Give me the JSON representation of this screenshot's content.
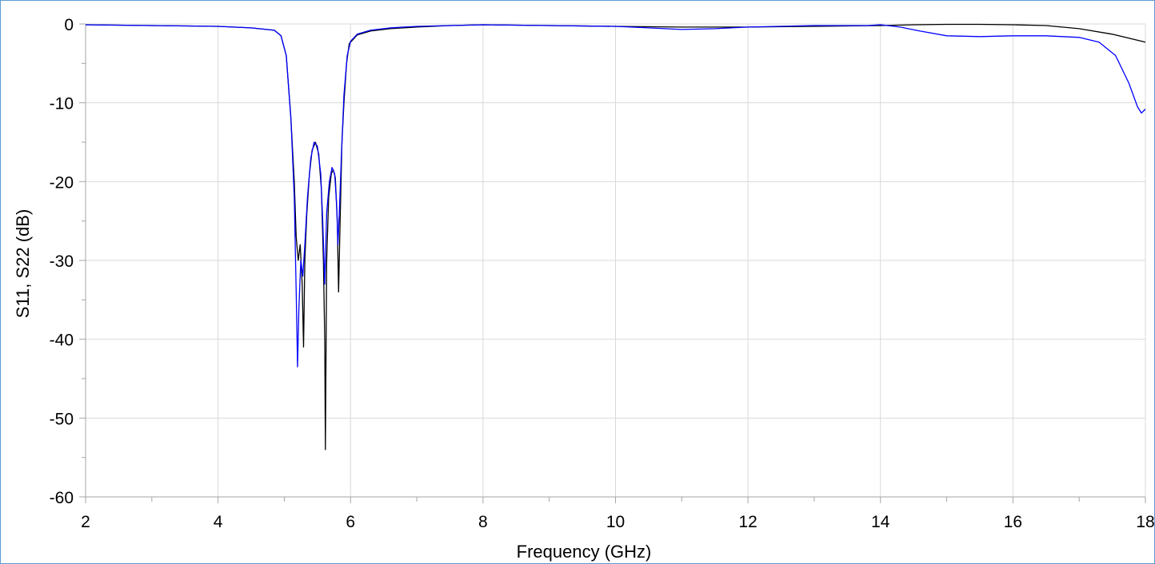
{
  "chart_data": {
    "type": "line",
    "xlabel": "Frequency (GHz)",
    "ylabel": "S11, S22 (dB)",
    "xlim": [
      2,
      18
    ],
    "ylim": [
      -60,
      0
    ],
    "x_ticks": [
      2,
      4,
      6,
      8,
      10,
      12,
      14,
      16,
      18
    ],
    "y_ticks": [
      0,
      -10,
      -20,
      -30,
      -40,
      -50,
      -60
    ],
    "x_tick_labels": [
      "2",
      "4",
      "6",
      "8",
      "10",
      "12",
      "14",
      "16",
      "18"
    ],
    "y_tick_labels": [
      "0",
      "-10",
      "-20",
      "-30",
      "-40",
      "-50",
      "-60"
    ],
    "grid": true,
    "series": [
      {
        "color": "#000000",
        "points": [
          [
            2.0,
            -0.1
          ],
          [
            3.0,
            -0.2
          ],
          [
            4.0,
            -0.3
          ],
          [
            4.5,
            -0.5
          ],
          [
            4.85,
            -0.8
          ],
          [
            4.95,
            -1.5
          ],
          [
            5.03,
            -4
          ],
          [
            5.1,
            -12
          ],
          [
            5.15,
            -20
          ],
          [
            5.18,
            -27
          ],
          [
            5.21,
            -30
          ],
          [
            5.24,
            -28
          ],
          [
            5.27,
            -33
          ],
          [
            5.29,
            -41
          ],
          [
            5.31,
            -30
          ],
          [
            5.34,
            -24
          ],
          [
            5.38,
            -19
          ],
          [
            5.42,
            -16
          ],
          [
            5.47,
            -15
          ],
          [
            5.52,
            -16.5
          ],
          [
            5.56,
            -21
          ],
          [
            5.59,
            -30
          ],
          [
            5.61,
            -40
          ],
          [
            5.62,
            -54
          ],
          [
            5.64,
            -30
          ],
          [
            5.67,
            -22
          ],
          [
            5.71,
            -19
          ],
          [
            5.74,
            -18.5
          ],
          [
            5.77,
            -19.5
          ],
          [
            5.8,
            -25
          ],
          [
            5.82,
            -34
          ],
          [
            5.84,
            -26
          ],
          [
            5.87,
            -15
          ],
          [
            5.9,
            -10
          ],
          [
            5.94,
            -5
          ],
          [
            5.98,
            -2.5
          ],
          [
            6.1,
            -1.4
          ],
          [
            6.3,
            -0.9
          ],
          [
            6.6,
            -0.6
          ],
          [
            7.0,
            -0.4
          ],
          [
            7.5,
            -0.2
          ],
          [
            8.0,
            -0.1
          ],
          [
            9.0,
            -0.2
          ],
          [
            10.0,
            -0.3
          ],
          [
            11.0,
            -0.4
          ],
          [
            12.0,
            -0.4
          ],
          [
            13.0,
            -0.3
          ],
          [
            14.0,
            -0.2
          ],
          [
            14.5,
            -0.1
          ],
          [
            15.0,
            -0.05
          ],
          [
            15.5,
            -0.05
          ],
          [
            16.0,
            -0.1
          ],
          [
            16.5,
            -0.2
          ],
          [
            17.0,
            -0.6
          ],
          [
            17.5,
            -1.3
          ],
          [
            18.0,
            -2.3
          ]
        ]
      },
      {
        "color": "#0000ff",
        "points": [
          [
            2.0,
            -0.1
          ],
          [
            3.0,
            -0.2
          ],
          [
            4.0,
            -0.3
          ],
          [
            4.5,
            -0.5
          ],
          [
            4.85,
            -0.8
          ],
          [
            4.95,
            -1.5
          ],
          [
            5.03,
            -4
          ],
          [
            5.1,
            -12
          ],
          [
            5.15,
            -22
          ],
          [
            5.18,
            -34
          ],
          [
            5.2,
            -43.5
          ],
          [
            5.22,
            -36
          ],
          [
            5.25,
            -30
          ],
          [
            5.28,
            -32
          ],
          [
            5.31,
            -28
          ],
          [
            5.35,
            -22
          ],
          [
            5.4,
            -17
          ],
          [
            5.45,
            -15
          ],
          [
            5.5,
            -15.5
          ],
          [
            5.55,
            -19
          ],
          [
            5.58,
            -25
          ],
          [
            5.61,
            -33
          ],
          [
            5.64,
            -24
          ],
          [
            5.68,
            -20
          ],
          [
            5.72,
            -18.2
          ],
          [
            5.76,
            -19
          ],
          [
            5.79,
            -23
          ],
          [
            5.81,
            -28
          ],
          [
            5.83,
            -24
          ],
          [
            5.86,
            -17
          ],
          [
            5.9,
            -9
          ],
          [
            5.95,
            -4
          ],
          [
            6.0,
            -2.2
          ],
          [
            6.1,
            -1.3
          ],
          [
            6.3,
            -0.8
          ],
          [
            6.6,
            -0.5
          ],
          [
            7.0,
            -0.3
          ],
          [
            7.5,
            -0.2
          ],
          [
            8.0,
            -0.1
          ],
          [
            9.0,
            -0.2
          ],
          [
            10.0,
            -0.3
          ],
          [
            10.5,
            -0.5
          ],
          [
            11.0,
            -0.7
          ],
          [
            11.5,
            -0.6
          ],
          [
            12.0,
            -0.4
          ],
          [
            13.0,
            -0.2
          ],
          [
            13.8,
            -0.2
          ],
          [
            14.0,
            -0.1
          ],
          [
            14.3,
            -0.4
          ],
          [
            14.6,
            -0.9
          ],
          [
            15.0,
            -1.5
          ],
          [
            15.5,
            -1.6
          ],
          [
            16.0,
            -1.5
          ],
          [
            16.5,
            -1.5
          ],
          [
            17.0,
            -1.7
          ],
          [
            17.3,
            -2.3
          ],
          [
            17.55,
            -4
          ],
          [
            17.75,
            -7.5
          ],
          [
            17.88,
            -10.5
          ],
          [
            17.94,
            -11.3
          ],
          [
            18.0,
            -10.8
          ]
        ]
      }
    ]
  }
}
